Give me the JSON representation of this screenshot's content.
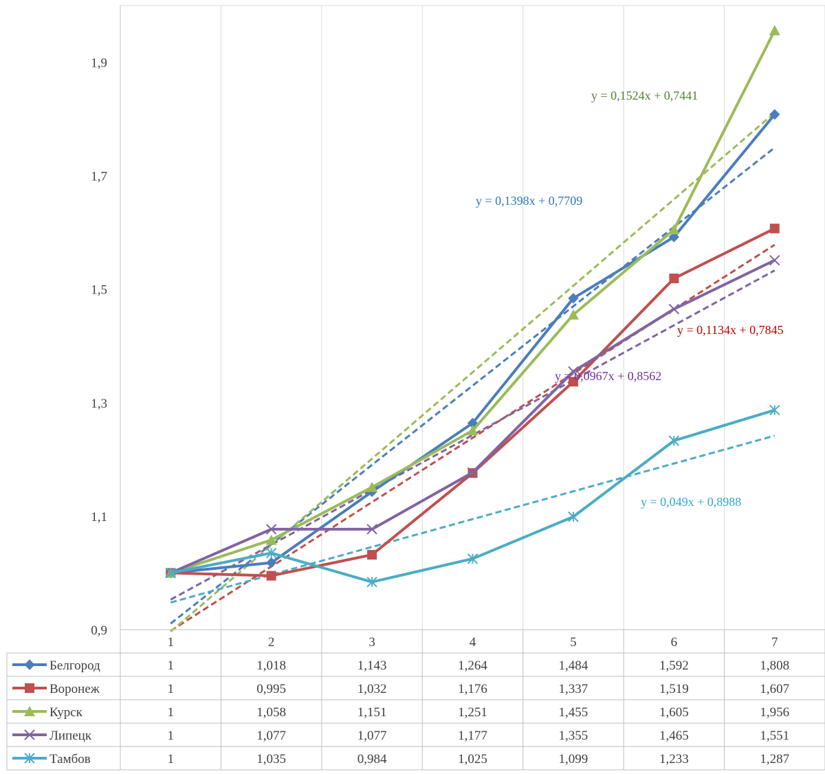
{
  "chart_data": {
    "type": "line",
    "x": [
      1,
      2,
      3,
      4,
      5,
      6,
      7
    ],
    "ylim": [
      0.9,
      2.0
    ],
    "yticks": [
      "0,9",
      "1,1",
      "1,3",
      "1,5",
      "1,7",
      "1,9"
    ],
    "ytick_values": [
      0.9,
      1.1,
      1.3,
      1.5,
      1.7,
      1.9
    ],
    "xtick_labels": [
      "1",
      "2",
      "3",
      "4",
      "5",
      "6",
      "7"
    ],
    "grid": "vertical",
    "legend": "data-table-bottom",
    "series": [
      {
        "name": "Белгород",
        "color": "#4A7EBB",
        "marker": "diamond",
        "values": [
          1,
          1.018,
          1.143,
          1.264,
          1.484,
          1.592,
          1.808
        ],
        "labels": [
          "1",
          "1,018",
          "1,143",
          "1,264",
          "1,484",
          "1,592",
          "1,808"
        ],
        "trend": {
          "slope": 0.1398,
          "intercept": 0.7709,
          "equation": "y = 0,1398x + 0,7709",
          "label_color": "#2E75B6"
        }
      },
      {
        "name": "Воронеж",
        "color": "#C0504D",
        "marker": "square",
        "values": [
          1,
          0.995,
          1.032,
          1.176,
          1.337,
          1.519,
          1.607
        ],
        "labels": [
          "1",
          "0,995",
          "1,032",
          "1,176",
          "1,337",
          "1,519",
          "1,607"
        ],
        "trend": {
          "slope": 0.1134,
          "intercept": 0.7845,
          "equation": "y = 0,1134x + 0,7845",
          "label_color": "#C00000"
        }
      },
      {
        "name": "Курск",
        "color": "#9BBB59",
        "marker": "triangle",
        "values": [
          1,
          1.058,
          1.151,
          1.251,
          1.455,
          1.605,
          1.956
        ],
        "labels": [
          "1",
          "1,058",
          "1,151",
          "1,251",
          "1,455",
          "1,605",
          "1,956"
        ],
        "trend": {
          "slope": 0.1524,
          "intercept": 0.7441,
          "equation": "y = 0,1524x + 0,7441",
          "label_color": "#548235"
        }
      },
      {
        "name": "Липецк",
        "color": "#8064A2",
        "marker": "x",
        "values": [
          1,
          1.077,
          1.077,
          1.177,
          1.355,
          1.465,
          1.551
        ],
        "labels": [
          "1",
          "1,077",
          "1,077",
          "1,177",
          "1,355",
          "1,465",
          "1,551"
        ],
        "trend": {
          "slope": 0.0967,
          "intercept": 0.8562,
          "equation": "y = 0,0967x + 0,8562",
          "label_color": "#7030A0"
        }
      },
      {
        "name": "Тамбов",
        "color": "#4BACC6",
        "marker": "star",
        "values": [
          1,
          1.035,
          0.984,
          1.025,
          1.099,
          1.233,
          1.287
        ],
        "labels": [
          "1",
          "1,035",
          "0,984",
          "1,025",
          "1,099",
          "1,233",
          "1,287"
        ],
        "trend": {
          "slope": 0.049,
          "intercept": 0.8988,
          "equation": "y = 0,049x + 0,8988",
          "label_color": "#2EA8D8"
        }
      }
    ]
  }
}
